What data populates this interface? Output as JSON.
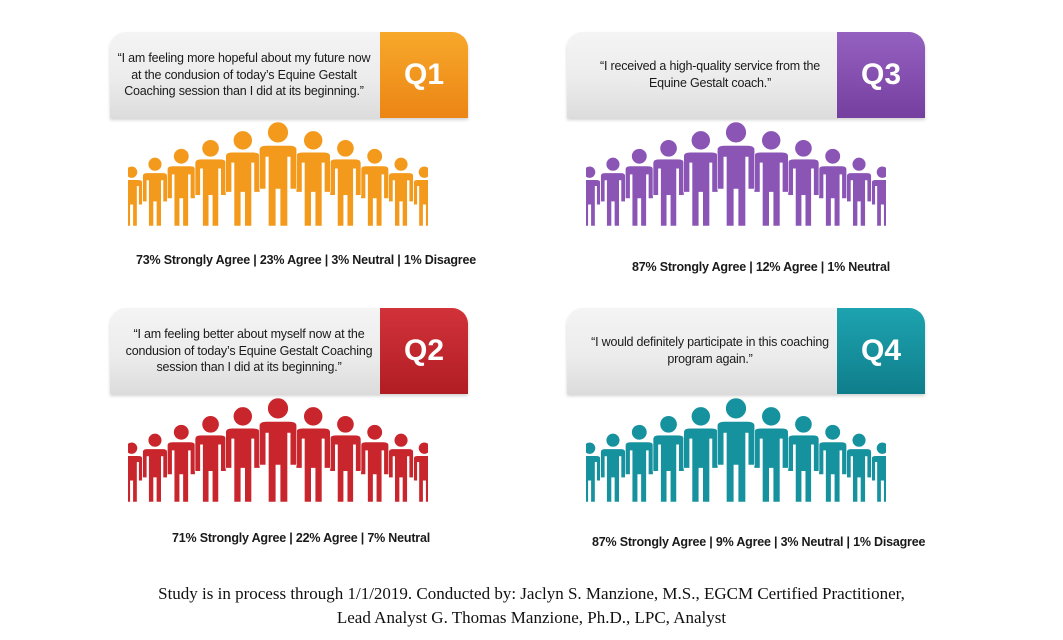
{
  "panels": [
    {
      "quote": "“I am feeling more hopeful about my future now at the condusion of today’s Equine Gestalt Coaching session than I did at its beginning.”",
      "label": "Q1",
      "color": "#f39a1c",
      "color_dark": "#e27d12",
      "stats": "73% Strongly Agree | 23% Agree | 3% Neutral | 1% Disagree"
    },
    {
      "quote": "“I received a high-quality service from the Equine Gestalt coach.”",
      "label": "Q3",
      "color": "#8a55b5",
      "color_dark": "#6d3f98",
      "stats": "87% Strongly Agree | 12% Agree | 1% Neutral"
    },
    {
      "quote": "“I am feeling better about myself now at the condusion of today’s Equine Gestalt Coaching session than I did at its beginning.”",
      "label": "Q2",
      "color": "#c8262c",
      "color_dark": "#a51c22",
      "stats": "71% Strongly Agree | 22% Agree | 7% Neutral"
    },
    {
      "quote": "“I would definitely participate in this coaching program again.”",
      "label": "Q4",
      "color": "#16929f",
      "color_dark": "#0d7582",
      "stats": "87% Strongly Agree | 9% Agree | 3% Neutral | 1% Disagree"
    }
  ],
  "chart_data": [
    {
      "type": "table",
      "title": "Q1",
      "categories": [
        "Strongly Agree",
        "Agree",
        "Neutral",
        "Disagree"
      ],
      "values": [
        73,
        23,
        3,
        1
      ],
      "unit": "%"
    },
    {
      "type": "table",
      "title": "Q3",
      "categories": [
        "Strongly Agree",
        "Agree",
        "Neutral"
      ],
      "values": [
        87,
        12,
        1
      ],
      "unit": "%"
    },
    {
      "type": "table",
      "title": "Q2",
      "categories": [
        "Strongly Agree",
        "Agree",
        "Neutral"
      ],
      "values": [
        71,
        22,
        7
      ],
      "unit": "%"
    },
    {
      "type": "table",
      "title": "Q4",
      "categories": [
        "Strongly Agree",
        "Agree",
        "Neutral",
        "Disagree"
      ],
      "values": [
        87,
        9,
        3,
        1
      ],
      "unit": "%"
    }
  ],
  "footer": {
    "line1": "Study is in process through 1/1/2019. Conducted by: Jaclyn S. Manzione, M.S., EGCM Certified Practitioner,",
    "line2": "Lead Analyst  G. Thomas Manzione, Ph.D., LPC, Analyst"
  },
  "icons": {
    "people": "person-silhouette-icon"
  },
  "neutral_figure_color": "#b9b9b9"
}
